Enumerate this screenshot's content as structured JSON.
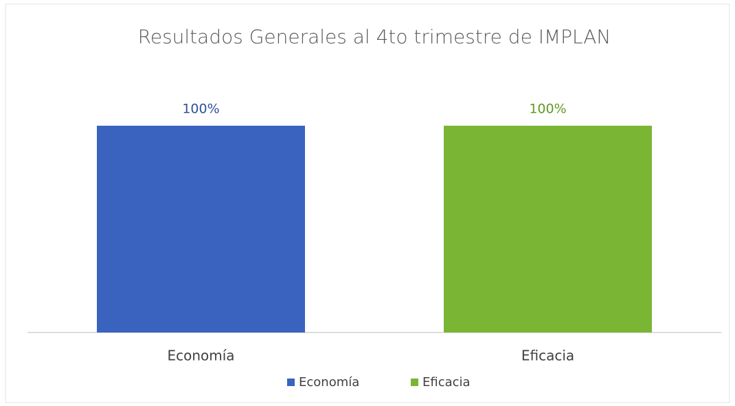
{
  "chart_data": {
    "type": "bar",
    "title": "Resultados Generales al 4to trimestre de IMPLAN",
    "categories": [
      "Economía",
      "Eficacia"
    ],
    "values": [
      100,
      100
    ],
    "value_labels": [
      "100%",
      "100%"
    ],
    "colors": [
      "#3a63c0",
      "#7ab534"
    ],
    "ylim": [
      0,
      100
    ]
  }
}
